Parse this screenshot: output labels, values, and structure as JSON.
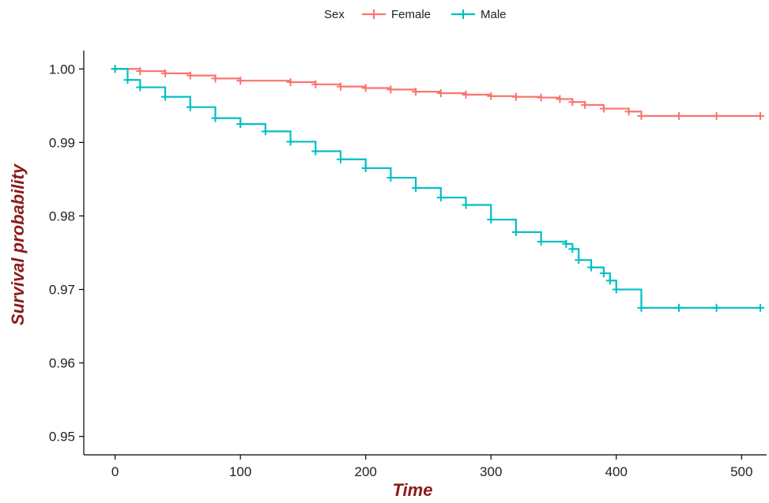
{
  "chart_data": {
    "type": "line",
    "title": "",
    "xlabel": "Time",
    "ylabel": "Survival probability",
    "xlim": [
      -25,
      520
    ],
    "ylim": [
      0.9475,
      1.0025
    ],
    "x_ticks": [
      0,
      100,
      200,
      300,
      400,
      500
    ],
    "x_tick_labels": [
      "0",
      "100",
      "200",
      "300",
      "400",
      "500"
    ],
    "y_ticks": [
      0.95,
      0.96,
      0.97,
      0.98,
      0.99,
      1.0
    ],
    "y_tick_labels": [
      "0.95",
      "0.96",
      "0.97",
      "0.98",
      "0.99",
      "1.00"
    ],
    "grid": false,
    "legend": {
      "position": "top",
      "title": "Sex",
      "entries": [
        "Female",
        "Male"
      ]
    },
    "series": [
      {
        "name": "Female",
        "color": "#f8766d",
        "step": true,
        "x": [
          0,
          20,
          40,
          60,
          80,
          100,
          140,
          160,
          180,
          200,
          220,
          240,
          260,
          280,
          300,
          320,
          340,
          355,
          365,
          375,
          390,
          410,
          420,
          450,
          480,
          515
        ],
        "y": [
          1.0,
          0.9997,
          0.9994,
          0.9991,
          0.9987,
          0.9984,
          0.9982,
          0.9979,
          0.9976,
          0.9974,
          0.9972,
          0.9969,
          0.9967,
          0.9965,
          0.9963,
          0.9962,
          0.9961,
          0.9959,
          0.9955,
          0.9951,
          0.9946,
          0.9942,
          0.9936,
          0.9936,
          0.9936,
          0.9936
        ]
      },
      {
        "name": "Male",
        "color": "#00bfc4",
        "step": true,
        "x": [
          0,
          10,
          20,
          40,
          60,
          80,
          100,
          120,
          140,
          160,
          180,
          200,
          220,
          240,
          260,
          280,
          300,
          320,
          340,
          360,
          365,
          370,
          380,
          390,
          395,
          400,
          420,
          450,
          480,
          515
        ],
        "y": [
          1.0,
          0.9985,
          0.9975,
          0.9962,
          0.9948,
          0.9933,
          0.9925,
          0.9915,
          0.9901,
          0.9888,
          0.9877,
          0.9865,
          0.9852,
          0.9838,
          0.9825,
          0.9815,
          0.9795,
          0.9778,
          0.9765,
          0.9762,
          0.9755,
          0.974,
          0.973,
          0.9722,
          0.9712,
          0.97,
          0.9675,
          0.9675,
          0.9675,
          0.9675
        ]
      }
    ]
  }
}
